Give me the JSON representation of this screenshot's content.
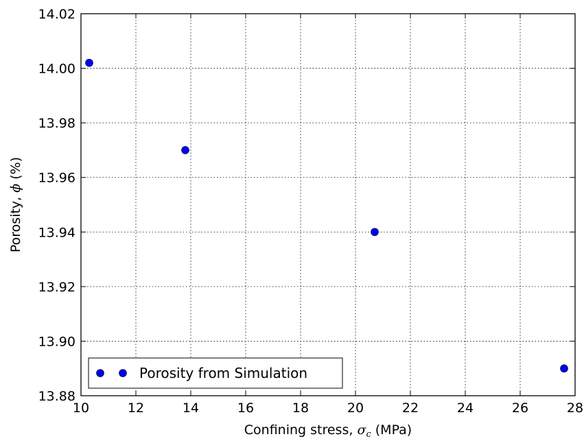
{
  "chart_data": {
    "type": "scatter",
    "title": "",
    "xlabel": {
      "prefix": "Confining stress, ",
      "symbol": "σ",
      "subscript": "c",
      "suffix": " (MPa)"
    },
    "ylabel": {
      "prefix": "Porosity, ",
      "symbol": "ϕ",
      "suffix": " (%)"
    },
    "xlim": [
      10,
      28
    ],
    "ylim": [
      13.88,
      14.02
    ],
    "xticks": [
      10,
      12,
      14,
      16,
      18,
      20,
      22,
      24,
      26,
      28
    ],
    "xtick_labels": [
      "10",
      "12",
      "14",
      "16",
      "18",
      "20",
      "22",
      "24",
      "26",
      "28"
    ],
    "yticks": [
      13.88,
      13.9,
      13.92,
      13.94,
      13.96,
      13.98,
      14.0,
      14.02
    ],
    "ytick_labels": [
      "13.88",
      "13.90",
      "13.92",
      "13.94",
      "13.96",
      "13.98",
      "14.00",
      "14.02"
    ],
    "grid": true,
    "legend_position": "bottom-left",
    "series": [
      {
        "name": "Porosity from Simulation",
        "color": "#0000ff",
        "marker": "circle",
        "points": [
          {
            "x": 10.3,
            "y": 14.002
          },
          {
            "x": 13.8,
            "y": 13.97
          },
          {
            "x": 20.7,
            "y": 13.94
          },
          {
            "x": 27.6,
            "y": 13.89
          }
        ]
      }
    ]
  }
}
